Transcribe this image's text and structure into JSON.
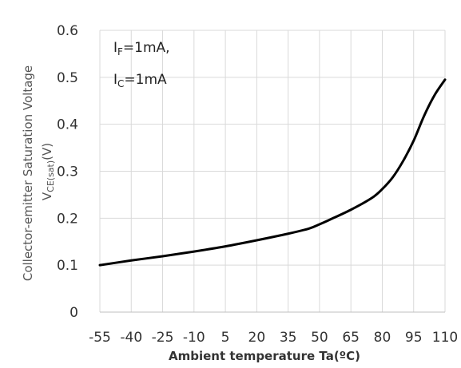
{
  "chart_data": {
    "type": "line",
    "xlabel": "Ambient temperature Ta(ºC)",
    "ylabel_line1": "Collector-emitter Saturation Voltage",
    "ylabel_line2_main": "V",
    "ylabel_line2_sub": "CE(sat)",
    "ylabel_line2_unit": "(V)",
    "x_ticks": [
      "-55",
      "-40",
      "-25",
      "-10",
      "5",
      "20",
      "35",
      "50",
      "65",
      "80",
      "95",
      "110"
    ],
    "y_ticks": [
      "0",
      "0.1",
      "0.2",
      "0.3",
      "0.4",
      "0.5",
      "0.6"
    ],
    "xlim": [
      -55,
      110
    ],
    "ylim": [
      0,
      0.6
    ],
    "grid": true,
    "annotations": [
      {
        "main": "I",
        "sub": "F",
        "rest": "=1mA,"
      },
      {
        "main": "I",
        "sub": "C",
        "rest": "=1mA"
      }
    ],
    "series": [
      {
        "color": "#000000",
        "x": [
          -55,
          -40,
          -25,
          -10,
          5,
          20,
          35,
          45,
          50,
          55,
          65,
          75,
          80,
          85,
          90,
          95,
          100,
          105,
          110
        ],
        "y": [
          0.1,
          0.11,
          0.119,
          0.129,
          0.14,
          0.153,
          0.167,
          0.178,
          0.187,
          0.197,
          0.218,
          0.243,
          0.262,
          0.287,
          0.322,
          0.365,
          0.418,
          0.462,
          0.495
        ]
      }
    ]
  }
}
